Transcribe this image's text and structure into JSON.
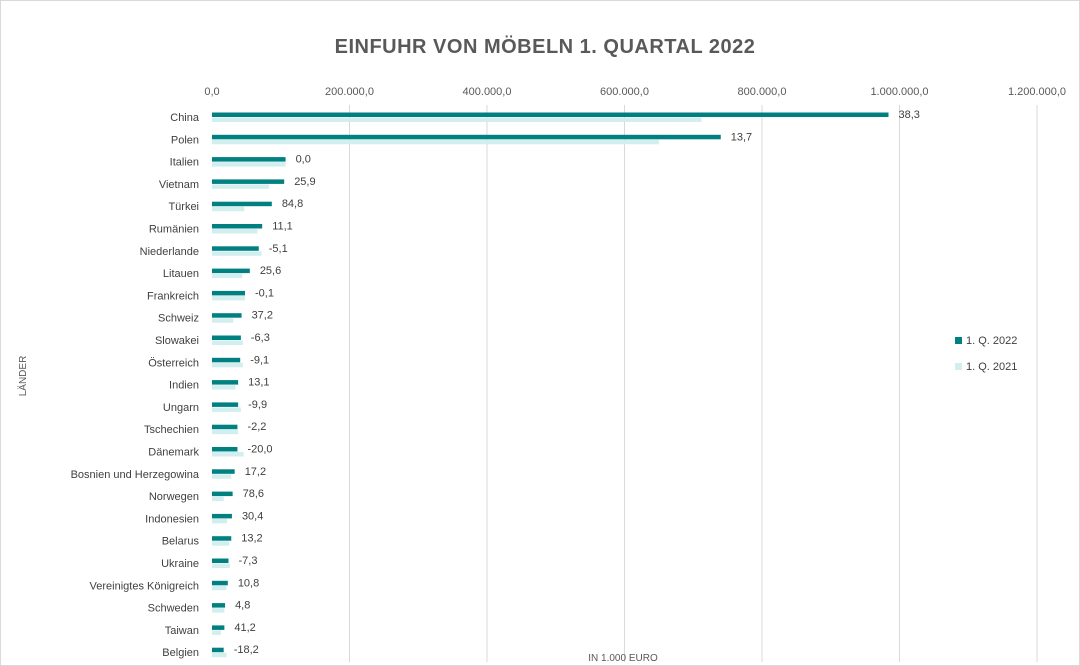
{
  "chart_data": {
    "type": "bar",
    "orientation": "horizontal",
    "title": "EINFUHR VON MÖBELN 1. QUARTAL 2022",
    "xlabel": "IN 1.000 EURO",
    "ylabel": "LÄNDER",
    "xlim": [
      0,
      1200000
    ],
    "x_ticks": [
      "0,0",
      "200.000,0",
      "400.000,0",
      "600.000,0",
      "800.000,0",
      "1.000.000,0",
      "1.200.000,0"
    ],
    "x_axis_position": "top",
    "grid": true,
    "legend_position": "right",
    "categories": [
      "China",
      "Polen",
      "Italien",
      "Vietnam",
      "Türkei",
      "Rumänien",
      "Niederlande",
      "Litauen",
      "Frankreich",
      "Schweiz",
      "Slowakei",
      "Österreich",
      "Indien",
      "Ungarn",
      "Tschechien",
      "Dänemark",
      "Bosnien und Herzegowina",
      "Norwegen",
      "Indonesien",
      "Belarus",
      "Ukraine",
      "Vereinigtes Königreich",
      "Schweden",
      "Taiwan",
      "Belgien"
    ],
    "series": [
      {
        "name": "1. Q. 2022",
        "color": "#008080",
        "values": [
          984000,
          740000,
          107000,
          105000,
          87000,
          73000,
          68000,
          55000,
          48000,
          43000,
          42000,
          41000,
          38000,
          38000,
          37000,
          37000,
          33000,
          30000,
          29000,
          28000,
          24000,
          23000,
          19000,
          18000,
          17000
        ]
      },
      {
        "name": "1. Q. 2021",
        "color": "#d3eeee",
        "values": [
          712000,
          650000,
          107000,
          83000,
          47000,
          66000,
          72000,
          44000,
          48000,
          31000,
          45000,
          45000,
          34000,
          42000,
          38000,
          46000,
          28000,
          17000,
          22000,
          25000,
          26000,
          21000,
          18000,
          13000,
          21000
        ]
      }
    ],
    "data_labels": [
      "38,3",
      "13,7",
      "0,0",
      "25,9",
      "84,8",
      "11,1",
      "-5,1",
      "25,6",
      "-0,1",
      "37,2",
      "-6,3",
      "-9,1",
      "13,1",
      "-9,9",
      "-2,2",
      "-20,0",
      "17,2",
      "78,6",
      "30,4",
      "13,2",
      "-7,3",
      "10,8",
      "4,8",
      "41,2",
      "-18,2"
    ]
  }
}
